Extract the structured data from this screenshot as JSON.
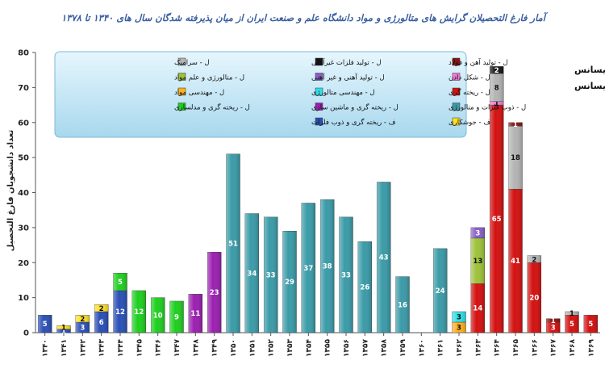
{
  "chart_data": {
    "type": "bar",
    "stacked": true,
    "title": "آمار فارغ التحصیلان گرایش های متالورژی و مواد دانشگاه علم و صنعت ایران از میان پذیرفته شدگان سال های ۱۳۴۰ تا ۱۳۷۸",
    "ylabel": "تعداد دانشجویان فارغ التحصیل",
    "xlabel": "",
    "ylim": [
      0,
      80
    ],
    "yticks": [
      "0",
      "10",
      "20",
      "30",
      "40",
      "50",
      "60",
      "70",
      "80"
    ],
    "grid": false,
    "categories": [
      "۱۳۴۰",
      "۱۳۴۱",
      "۱۳۴۲",
      "۱۳۴۳",
      "۱۳۴۴",
      "۱۳۴۵",
      "۱۳۴۶",
      "۱۳۴۷",
      "۱۳۴۸",
      "۱۳۴۹",
      "۱۳۵۰",
      "۱۳۵۱",
      "۱۳۵۲",
      "۱۳۵۳",
      "۱۳۵۴",
      "۱۳۵۵",
      "۱۳۵۶",
      "۱۳۵۷",
      "۱۳۵۸",
      "۱۳۵۹",
      "۱۳۶۰",
      "۱۳۶۱",
      "۱۳۶۲",
      "۱۳۶۳",
      "۱۳۶۴",
      "۱۳۶۵",
      "۱۳۶۶",
      "۱۳۶۷",
      "۱۳۶۸",
      "۱۳۶۹"
    ],
    "legend_note": {
      "master": "ف : فوق لیسانس",
      "bachelor": "ل : لیسانس"
    },
    "series": [
      {
        "name": "ف - ریخته گری و ذوب فلزات",
        "color": "#2a4fb5",
        "values": [
          5,
          1,
          3,
          6,
          12,
          0,
          0,
          0,
          0,
          0,
          0,
          0,
          0,
          0,
          0,
          0,
          0,
          0,
          0,
          0,
          0,
          0,
          0,
          0,
          0,
          0,
          0,
          0,
          0,
          0
        ]
      },
      {
        "name": "ف - جوشکاری",
        "color": "#ffe028",
        "values": [
          0,
          1,
          2,
          2,
          0,
          0,
          0,
          0,
          0,
          0,
          0,
          0,
          0,
          0,
          0,
          0,
          0,
          0,
          0,
          0,
          0,
          0,
          0,
          0,
          0,
          0,
          0,
          0,
          0,
          0
        ]
      },
      {
        "name": "ل - ریخته گری و مدلسازی",
        "color": "#1ecf1e",
        "values": [
          0,
          0,
          0,
          0,
          5,
          12,
          10,
          9,
          0,
          0,
          0,
          0,
          0,
          0,
          0,
          0,
          0,
          0,
          0,
          0,
          0,
          0,
          0,
          0,
          0,
          0,
          0,
          0,
          0,
          0
        ]
      },
      {
        "name": "ل - ریخته گری و ماشین سازی",
        "color": "#9b1fb0",
        "values": [
          0,
          0,
          0,
          0,
          0,
          0,
          0,
          0,
          11,
          23,
          0,
          0,
          0,
          0,
          0,
          0,
          0,
          0,
          0,
          0,
          0,
          0,
          0,
          0,
          0,
          0,
          0,
          0,
          0,
          0
        ]
      },
      {
        "name": "ل - ذوب فلزات و متالورژی",
        "color": "#3a9ba8",
        "values": [
          0,
          0,
          0,
          0,
          0,
          0,
          0,
          0,
          0,
          0,
          51,
          34,
          33,
          29,
          37,
          38,
          33,
          26,
          43,
          16,
          0,
          24,
          0,
          0,
          0,
          0,
          0,
          0,
          0,
          0
        ]
      },
      {
        "name": "ل - مهندسی مواد",
        "color": "#ffb020",
        "values": [
          0,
          0,
          0,
          0,
          0,
          0,
          0,
          0,
          0,
          0,
          0,
          0,
          0,
          0,
          0,
          0,
          0,
          0,
          0,
          0,
          0,
          0,
          3,
          0,
          0,
          0,
          0,
          0,
          0,
          0
        ]
      },
      {
        "name": "ل - مهندسی متالورژی",
        "color": "#30e0e8",
        "values": [
          0,
          0,
          0,
          0,
          0,
          0,
          0,
          0,
          0,
          0,
          0,
          0,
          0,
          0,
          0,
          0,
          0,
          0,
          0,
          0,
          0,
          0,
          3,
          0,
          0,
          0,
          0,
          0,
          0,
          0
        ]
      },
      {
        "name": "ل - ریخته گری",
        "color": "#d41010",
        "values": [
          0,
          0,
          0,
          0,
          0,
          0,
          0,
          0,
          0,
          0,
          0,
          0,
          0,
          0,
          0,
          0,
          0,
          0,
          0,
          0,
          0,
          0,
          0,
          14,
          65,
          41,
          20,
          3,
          5,
          5
        ]
      },
      {
        "name": "ل - متالورژی و علم مواد",
        "color": "#9ec23a",
        "values": [
          0,
          0,
          0,
          0,
          0,
          0,
          0,
          0,
          0,
          0,
          0,
          0,
          0,
          0,
          0,
          0,
          0,
          0,
          0,
          0,
          0,
          0,
          0,
          13,
          0,
          0,
          0,
          0,
          0,
          0
        ]
      },
      {
        "name": "ل - تولید آهنی و غیر آهنی",
        "color": "#8a5fc8",
        "values": [
          0,
          0,
          0,
          0,
          0,
          0,
          0,
          0,
          0,
          0,
          0,
          0,
          0,
          0,
          0,
          0,
          0,
          0,
          0,
          0,
          0,
          0,
          0,
          3,
          0,
          0,
          0,
          0,
          0,
          0
        ]
      },
      {
        "name": "ل - شکل دادن",
        "color": "#f07ad8",
        "values": [
          0,
          0,
          0,
          0,
          0,
          0,
          0,
          0,
          0,
          0,
          0,
          0,
          0,
          0,
          0,
          0,
          0,
          0,
          0,
          0,
          0,
          0,
          0,
          0,
          1,
          0,
          0,
          0,
          0,
          0
        ]
      },
      {
        "name": "ل - سرامیک",
        "color": "#b4b4b4",
        "values": [
          0,
          0,
          0,
          0,
          0,
          0,
          0,
          0,
          0,
          0,
          0,
          0,
          0,
          0,
          0,
          0,
          0,
          0,
          0,
          0,
          0,
          0,
          0,
          0,
          8,
          18,
          2,
          0,
          1,
          0
        ]
      },
      {
        "name": "ل - تولید فلزات غیرآهنی",
        "color": "#151515",
        "values": [
          0,
          0,
          0,
          0,
          0,
          0,
          0,
          0,
          0,
          0,
          0,
          0,
          0,
          0,
          0,
          0,
          0,
          0,
          0,
          0,
          0,
          0,
          0,
          0,
          2,
          0,
          0,
          0,
          0,
          0
        ]
      },
      {
        "name": "ل - تولید آهن و فولاد",
        "color": "#8e1212",
        "values": [
          0,
          0,
          0,
          0,
          0,
          0,
          0,
          0,
          0,
          0,
          0,
          0,
          0,
          0,
          0,
          0,
          0,
          0,
          0,
          0,
          0,
          0,
          0,
          0,
          0,
          1,
          0,
          1,
          0,
          0
        ]
      }
    ]
  }
}
